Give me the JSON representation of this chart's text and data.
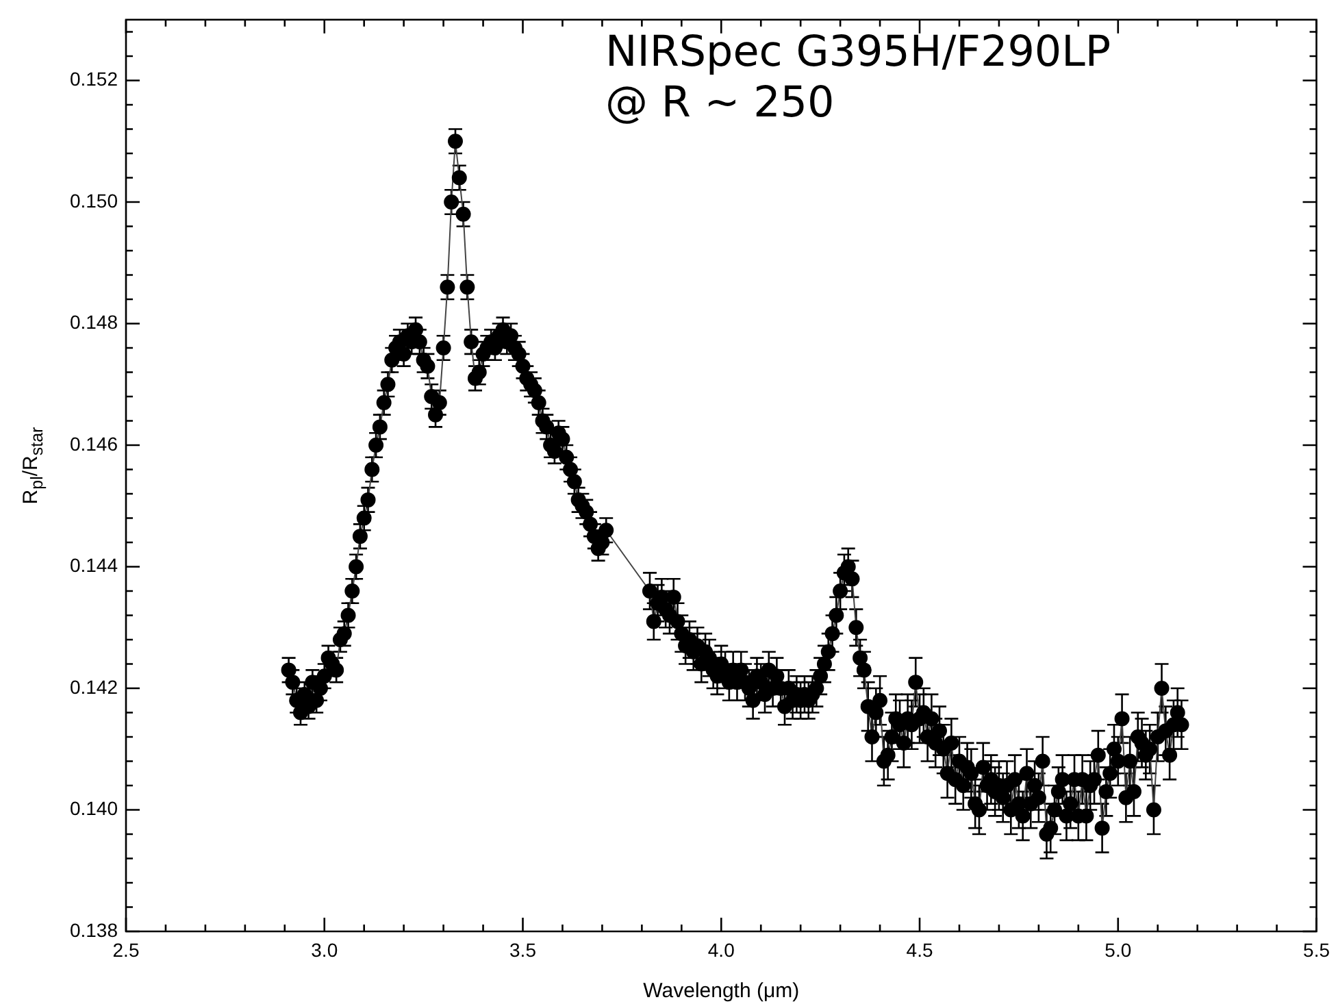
{
  "chart_data": {
    "type": "line",
    "xlabel": "Wavelength (μm)",
    "ylabel": "R$_{pl}$/R$_{star}$",
    "annotations": [
      "NIRSpec G395H/F290LP\n@ R ~ 250"
    ],
    "xlim": [
      2.5,
      5.5
    ],
    "ylim": [
      0.138,
      0.153
    ],
    "xticks": [
      {
        "value": 2.5,
        "label": "2.5"
      },
      {
        "value": 2.6,
        "label": null
      },
      {
        "value": 2.7,
        "label": null
      },
      {
        "value": 2.8,
        "label": null
      },
      {
        "value": 2.9,
        "label": null
      },
      {
        "value": 3.0,
        "label": "3.0"
      },
      {
        "value": 3.1,
        "label": null
      },
      {
        "value": 3.2,
        "label": null
      },
      {
        "value": 3.3,
        "label": null
      },
      {
        "value": 3.4,
        "label": null
      },
      {
        "value": 3.5,
        "label": "3.5"
      },
      {
        "value": 3.6,
        "label": null
      },
      {
        "value": 3.7,
        "label": null
      },
      {
        "value": 3.8,
        "label": null
      },
      {
        "value": 3.9,
        "label": null
      },
      {
        "value": 4.0,
        "label": "4.0"
      },
      {
        "value": 4.1,
        "label": null
      },
      {
        "value": 4.2,
        "label": null
      },
      {
        "value": 4.3,
        "label": null
      },
      {
        "value": 4.4,
        "label": null
      },
      {
        "value": 4.5,
        "label": "4.5"
      },
      {
        "value": 4.6,
        "label": null
      },
      {
        "value": 4.7,
        "label": null
      },
      {
        "value": 4.8,
        "label": null
      },
      {
        "value": 4.9,
        "label": null
      },
      {
        "value": 5.0,
        "label": "5.0"
      },
      {
        "value": 5.1,
        "label": null
      },
      {
        "value": 5.2,
        "label": null
      },
      {
        "value": 5.3,
        "label": null
      },
      {
        "value": 5.4,
        "label": null
      },
      {
        "value": 5.5,
        "label": "5.5"
      }
    ],
    "yticks": [
      {
        "value": 0.138,
        "label": "0.138"
      },
      {
        "value": 0.1384,
        "label": null
      },
      {
        "value": 0.1388,
        "label": null
      },
      {
        "value": 0.1392,
        "label": null
      },
      {
        "value": 0.1396,
        "label": null
      },
      {
        "value": 0.14,
        "label": "0.140"
      },
      {
        "value": 0.1404,
        "label": null
      },
      {
        "value": 0.1408,
        "label": null
      },
      {
        "value": 0.1412,
        "label": null
      },
      {
        "value": 0.1416,
        "label": null
      },
      {
        "value": 0.142,
        "label": "0.142"
      },
      {
        "value": 0.1424,
        "label": null
      },
      {
        "value": 0.1428,
        "label": null
      },
      {
        "value": 0.1432,
        "label": null
      },
      {
        "value": 0.1436,
        "label": null
      },
      {
        "value": 0.144,
        "label": "0.144"
      },
      {
        "value": 0.1444,
        "label": null
      },
      {
        "value": 0.1448,
        "label": null
      },
      {
        "value": 0.1452,
        "label": null
      },
      {
        "value": 0.1456,
        "label": null
      },
      {
        "value": 0.146,
        "label": "0.146"
      },
      {
        "value": 0.1464,
        "label": null
      },
      {
        "value": 0.1468,
        "label": null
      },
      {
        "value": 0.1472,
        "label": null
      },
      {
        "value": 0.1476,
        "label": null
      },
      {
        "value": 0.148,
        "label": "0.148"
      },
      {
        "value": 0.1484,
        "label": null
      },
      {
        "value": 0.1488,
        "label": null
      },
      {
        "value": 0.1492,
        "label": null
      },
      {
        "value": 0.1496,
        "label": null
      },
      {
        "value": 0.15,
        "label": "0.150"
      },
      {
        "value": 0.1504,
        "label": null
      },
      {
        "value": 0.1508,
        "label": null
      },
      {
        "value": 0.1512,
        "label": null
      },
      {
        "value": 0.1516,
        "label": null
      },
      {
        "value": 0.152,
        "label": "0.152"
      },
      {
        "value": 0.1524,
        "label": null
      },
      {
        "value": 0.1528,
        "label": null
      }
    ],
    "grid": false,
    "legend": false,
    "marker": "circle",
    "line_style": "solid",
    "series": [
      {
        "color": "#000000",
        "x": [
          2.91,
          2.92,
          2.93,
          2.94,
          2.95,
          2.96,
          2.97,
          2.98,
          2.99,
          3.0,
          3.01,
          3.02,
          3.03,
          3.04,
          3.05,
          3.06,
          3.07,
          3.08,
          3.09,
          3.1,
          3.11,
          3.12,
          3.13,
          3.14,
          3.15,
          3.16,
          3.17,
          3.18,
          3.19,
          3.2,
          3.21,
          3.22,
          3.23,
          3.24,
          3.25,
          3.26,
          3.27,
          3.28,
          3.29,
          3.3,
          3.31,
          3.32,
          3.33,
          3.34,
          3.35,
          3.36,
          3.37,
          3.38,
          3.39,
          3.4,
          3.41,
          3.42,
          3.43,
          3.44,
          3.45,
          3.46,
          3.47,
          3.48,
          3.49,
          3.5,
          3.51,
          3.52,
          3.53,
          3.54,
          3.55,
          3.56,
          3.57,
          3.58,
          3.59,
          3.6,
          3.61,
          3.62,
          3.63,
          3.64,
          3.65,
          3.66,
          3.67,
          3.68,
          3.69,
          3.7,
          3.71,
          3.82,
          3.83,
          3.84,
          3.85,
          3.86,
          3.87,
          3.88,
          3.89,
          3.9,
          3.91,
          3.92,
          3.93,
          3.94,
          3.95,
          3.96,
          3.97,
          3.98,
          3.99,
          4.0,
          4.01,
          4.02,
          4.03,
          4.04,
          4.05,
          4.06,
          4.07,
          4.08,
          4.09,
          4.1,
          4.11,
          4.12,
          4.13,
          4.14,
          4.15,
          4.16,
          4.17,
          4.18,
          4.19,
          4.2,
          4.21,
          4.22,
          4.23,
          4.24,
          4.25,
          4.26,
          4.27,
          4.28,
          4.29,
          4.3,
          4.31,
          4.32,
          4.33,
          4.34,
          4.35,
          4.36,
          4.37,
          4.38,
          4.39,
          4.4,
          4.41,
          4.42,
          4.43,
          4.44,
          4.45,
          4.46,
          4.47,
          4.48,
          4.49,
          4.5,
          4.51,
          4.52,
          4.53,
          4.54,
          4.55,
          4.56,
          4.57,
          4.58,
          4.59,
          4.6,
          4.61,
          4.62,
          4.63,
          4.64,
          4.65,
          4.66,
          4.67,
          4.68,
          4.69,
          4.7,
          4.71,
          4.72,
          4.73,
          4.74,
          4.75,
          4.76,
          4.77,
          4.78,
          4.79,
          4.8,
          4.81,
          4.82,
          4.83,
          4.84,
          4.85,
          4.86,
          4.87,
          4.88,
          4.89,
          4.9,
          4.91,
          4.92,
          4.93,
          4.94,
          4.95,
          4.96,
          4.97,
          4.98,
          4.99,
          5.0,
          5.01,
          5.02,
          5.03,
          5.04,
          5.05,
          5.06,
          5.07,
          5.08,
          5.09,
          5.1,
          5.11,
          5.12,
          5.13,
          5.14,
          5.15,
          5.16
        ],
        "values": [
          0.1423,
          0.1421,
          0.1418,
          0.1416,
          0.1419,
          0.1417,
          0.1421,
          0.1418,
          0.142,
          0.1422,
          0.1425,
          0.1424,
          0.1423,
          0.1428,
          0.1429,
          0.1432,
          0.1436,
          0.144,
          0.1445,
          0.1448,
          0.1451,
          0.1456,
          0.146,
          0.1463,
          0.1467,
          0.147,
          0.1474,
          0.1476,
          0.1477,
          0.1475,
          0.1478,
          0.1477,
          0.1479,
          0.1477,
          0.1474,
          0.1473,
          0.1468,
          0.1465,
          0.1467,
          0.1476,
          0.1486,
          0.15,
          0.151,
          0.1504,
          0.1498,
          0.1486,
          0.1477,
          0.1471,
          0.1472,
          0.1475,
          0.1476,
          0.1477,
          0.1476,
          0.1478,
          0.1479,
          0.1477,
          0.1478,
          0.1476,
          0.1475,
          0.1473,
          0.1471,
          0.147,
          0.1469,
          0.1467,
          0.1464,
          0.1463,
          0.146,
          0.1459,
          0.1462,
          0.1461,
          0.1458,
          0.1456,
          0.1454,
          0.1451,
          0.145,
          0.1449,
          0.1447,
          0.1445,
          0.1443,
          0.1444,
          0.1446,
          0.1436,
          0.1431,
          0.1434,
          0.1435,
          0.1433,
          0.1432,
          0.1435,
          0.1431,
          0.1429,
          0.1427,
          0.1428,
          0.1426,
          0.1427,
          0.1424,
          0.1426,
          0.1425,
          0.1423,
          0.1422,
          0.1424,
          0.1423,
          0.1421,
          0.1423,
          0.1421,
          0.1423,
          0.1421,
          0.142,
          0.1418,
          0.1422,
          0.1421,
          0.1419,
          0.1423,
          0.142,
          0.1422,
          0.142,
          0.1417,
          0.142,
          0.1418,
          0.1419,
          0.1418,
          0.1419,
          0.1418,
          0.1419,
          0.142,
          0.1422,
          0.1424,
          0.1426,
          0.1429,
          0.1432,
          0.1436,
          0.1439,
          0.144,
          0.1438,
          0.143,
          0.1425,
          0.1423,
          0.1417,
          0.1412,
          0.1416,
          0.1418,
          0.1408,
          0.1409,
          0.1412,
          0.1415,
          0.1414,
          0.1411,
          0.1415,
          0.1414,
          0.1421,
          0.1415,
          0.1416,
          0.1412,
          0.1415,
          0.1411,
          0.1413,
          0.141,
          0.1406,
          0.1411,
          0.1405,
          0.1408,
          0.1404,
          0.1407,
          0.1406,
          0.1401,
          0.14,
          0.1407,
          0.1404,
          0.1405,
          0.1403,
          0.1404,
          0.1402,
          0.1404,
          0.14,
          0.1405,
          0.1401,
          0.1399,
          0.1406,
          0.1401,
          0.1404,
          0.1402,
          0.1408,
          0.1396,
          0.1397,
          0.14,
          0.1403,
          0.1405,
          0.1399,
          0.1401,
          0.1405,
          0.1399,
          0.1405,
          0.1399,
          0.1404,
          0.1405,
          0.1409,
          0.1397,
          0.1403,
          0.1406,
          0.141,
          0.1408,
          0.1415,
          0.1402,
          0.1408,
          0.1403,
          0.1412,
          0.1411,
          0.1409,
          0.141,
          0.14,
          0.1412,
          0.142,
          0.1413,
          0.1409,
          0.1414,
          0.1416,
          0.1414
        ],
        "errors": [
          0.0002,
          0.0002,
          0.0002,
          0.0002,
          0.0002,
          0.0002,
          0.0002,
          0.0002,
          0.0002,
          0.0002,
          0.0002,
          0.0002,
          0.0002,
          0.0002,
          0.0002,
          0.0002,
          0.0002,
          0.0002,
          0.0002,
          0.0002,
          0.0002,
          0.0002,
          0.0002,
          0.0002,
          0.0002,
          0.0002,
          0.0002,
          0.0002,
          0.0002,
          0.0002,
          0.0002,
          0.0002,
          0.0002,
          0.0002,
          0.0002,
          0.0002,
          0.0002,
          0.0002,
          0.0002,
          0.0002,
          0.0002,
          0.0002,
          0.0002,
          0.0002,
          0.0002,
          0.0002,
          0.0002,
          0.0002,
          0.0002,
          0.0002,
          0.0002,
          0.0002,
          0.0002,
          0.0002,
          0.0002,
          0.0002,
          0.0002,
          0.0002,
          0.0002,
          0.0002,
          0.0002,
          0.0002,
          0.0002,
          0.0002,
          0.0002,
          0.0002,
          0.0002,
          0.0002,
          0.0002,
          0.0002,
          0.0002,
          0.0002,
          0.0002,
          0.0002,
          0.0002,
          0.0002,
          0.0002,
          0.0002,
          0.0002,
          0.0002,
          0.0002,
          0.0003,
          0.0003,
          0.0003,
          0.0003,
          0.0003,
          0.0003,
          0.0003,
          0.0003,
          0.0003,
          0.0003,
          0.0003,
          0.0003,
          0.0003,
          0.0003,
          0.0003,
          0.0003,
          0.0003,
          0.0003,
          0.0003,
          0.0003,
          0.0003,
          0.0003,
          0.0003,
          0.0003,
          0.0003,
          0.0003,
          0.0003,
          0.0003,
          0.0003,
          0.0003,
          0.0003,
          0.0003,
          0.0003,
          0.0003,
          0.0003,
          0.0003,
          0.0003,
          0.0003,
          0.0003,
          0.0003,
          0.0003,
          0.0003,
          0.0003,
          0.0003,
          0.0003,
          0.0003,
          0.0003,
          0.0003,
          0.0003,
          0.0003,
          0.0003,
          0.0003,
          0.0003,
          0.0003,
          0.0003,
          0.0004,
          0.0004,
          0.0004,
          0.0004,
          0.0004,
          0.0004,
          0.0004,
          0.0004,
          0.0004,
          0.0004,
          0.0004,
          0.0004,
          0.0004,
          0.0004,
          0.0004,
          0.0004,
          0.0004,
          0.0004,
          0.0004,
          0.0004,
          0.0004,
          0.0004,
          0.0004,
          0.0004,
          0.0004,
          0.0004,
          0.0004,
          0.0004,
          0.0004,
          0.0004,
          0.0004,
          0.0004,
          0.0004,
          0.0004,
          0.0004,
          0.0004,
          0.0004,
          0.0004,
          0.0004,
          0.0004,
          0.0004,
          0.0004,
          0.0004,
          0.0004,
          0.0004,
          0.0004,
          0.0004,
          0.0004,
          0.0004,
          0.0004,
          0.0004,
          0.0004,
          0.0004,
          0.0004,
          0.0004,
          0.0004,
          0.0004,
          0.0004,
          0.0004,
          0.0004,
          0.0004,
          0.0004,
          0.0004,
          0.0004,
          0.0004,
          0.0004,
          0.0004,
          0.0004,
          0.0004,
          0.0004,
          0.0004,
          0.0004,
          0.0004,
          0.0004,
          0.0004,
          0.0004,
          0.0004,
          0.0004,
          0.0004,
          0.0004
        ]
      }
    ]
  }
}
